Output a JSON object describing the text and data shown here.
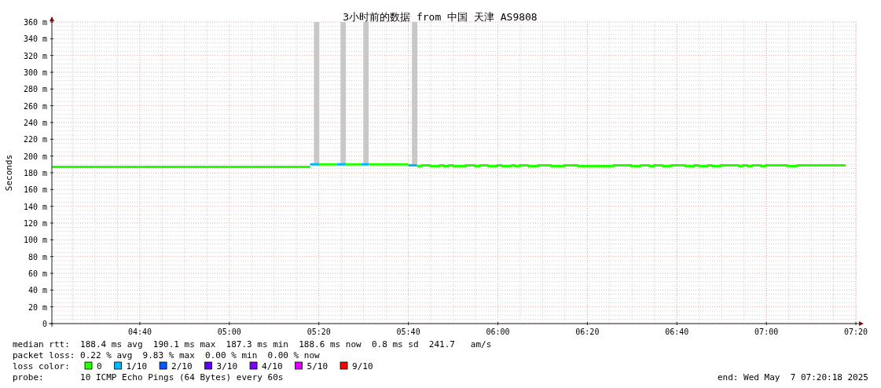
{
  "chart_data": {
    "type": "step",
    "title": "3小时前的数据 from 中国 天津 AS9808",
    "ylabel": "Seconds",
    "legend_title": "loss color:",
    "xlim": [
      4.339,
      7.342
    ],
    "ylim": [
      0,
      360
    ],
    "xticks": [
      {
        "value": 4.6667,
        "label": "04:40"
      },
      {
        "value": 5,
        "label": "05:00"
      },
      {
        "value": 5.3333,
        "label": "05:20"
      },
      {
        "value": 5.6667,
        "label": "05:40"
      },
      {
        "value": 6,
        "label": "06:00"
      },
      {
        "value": 6.3333,
        "label": "06:20"
      },
      {
        "value": 6.6667,
        "label": "06:40"
      },
      {
        "value": 7,
        "label": "07:00"
      },
      {
        "value": 7.3333,
        "label": "07:20"
      }
    ],
    "yticks": [
      0,
      {
        "value": 20,
        "label": "20 m"
      },
      {
        "value": 40,
        "label": "40 m"
      },
      {
        "value": 60,
        "label": "60 m"
      },
      {
        "value": 80,
        "label": "80 m"
      },
      {
        "value": 100,
        "label": "100 m"
      },
      {
        "value": 120,
        "label": "120 m"
      },
      {
        "value": 140,
        "label": "140 m"
      },
      {
        "value": 160,
        "label": "160 m"
      },
      {
        "value": 180,
        "label": "180 m"
      },
      {
        "value": 200,
        "label": "200 m"
      },
      {
        "value": 220,
        "label": "220 m"
      },
      {
        "value": 240,
        "label": "240 m"
      },
      {
        "value": 260,
        "label": "260 m"
      },
      {
        "value": 280,
        "label": "280 m"
      },
      {
        "value": 300,
        "label": "300 m"
      },
      {
        "value": 320,
        "label": "320 m"
      },
      {
        "value": 340,
        "label": "340 m"
      },
      {
        "value": 360,
        "label": "360 m"
      }
    ],
    "grid": true,
    "legend": "bottom",
    "series": [
      {
        "type": "bar",
        "color": "#c8c8c8",
        "x": [
          5.325,
          5.424,
          5.509,
          5.69
        ],
        "base": [
          190,
          190,
          190,
          190
        ],
        "values": [
          170,
          170,
          170,
          170
        ]
      },
      {
        "name": "0",
        "color": "#26ff00",
        "x": [
          4.339,
          5.301,
          5.302,
          5.334,
          5.4,
          5.401,
          5.433,
          5.49,
          5.491,
          5.52,
          5.667,
          5.668,
          5.699,
          5.716,
          5.748,
          5.784,
          5.798,
          5.816,
          5.833,
          5.88,
          5.915,
          5.933,
          5.965,
          5.997,
          6.015,
          6.05,
          6.064,
          6.082,
          6.114,
          6.149,
          6.199,
          6.246,
          6.298,
          6.43,
          6.497,
          6.532,
          6.564,
          6.582,
          6.614,
          6.646,
          6.699,
          6.731,
          6.749,
          6.781,
          6.798,
          6.83,
          6.898,
          6.912,
          6.93,
          6.947,
          6.98,
          6.997,
          7.079,
          7.114,
          7.295
        ],
        "values": [
          187,
          187,
          null,
          190,
          190,
          null,
          190,
          190,
          null,
          190,
          190,
          null,
          188,
          189,
          188,
          189,
          188,
          189,
          188,
          189,
          188,
          189,
          188,
          189,
          188,
          189,
          188,
          189,
          188,
          189,
          188,
          189,
          188,
          189,
          188,
          189,
          188,
          189,
          188,
          189,
          188,
          189,
          188,
          189,
          188,
          189,
          188,
          189,
          188,
          189,
          188,
          189,
          188,
          189,
          189
        ]
      },
      {
        "name": "1/10",
        "color": "#00b8ff",
        "x": [
          5.301,
          5.334,
          5.335,
          5.4,
          5.433,
          5.434,
          5.49,
          5.52,
          5.521,
          5.667,
          5.699
        ],
        "values": [
          190,
          190,
          null,
          190,
          190,
          null,
          190,
          190,
          null,
          189,
          189
        ]
      },
      {
        "name": "2/10",
        "color": "#0059ff"
      },
      {
        "name": "3/10",
        "color": "#5e00ff"
      },
      {
        "name": "4/10",
        "color": "#7e00ff"
      },
      {
        "name": "5/10",
        "color": "#dd00ff"
      },
      {
        "name": "9/10",
        "color": "#ff0000"
      }
    ],
    "annotations": [
      "median rtt:  188.4 ms avg  190.1 ms max  187.3 ms min  188.6 ms now  0.8 ms sd  241.7   am/s",
      "packet loss: 0.22 % avg  9.83 % max  0.00 % min  0.00 % now",
      "probe:       10 ICMP Echo Pings (64 Bytes) every 60s",
      "end: Wed May  7 07:20:18 2025"
    ]
  }
}
